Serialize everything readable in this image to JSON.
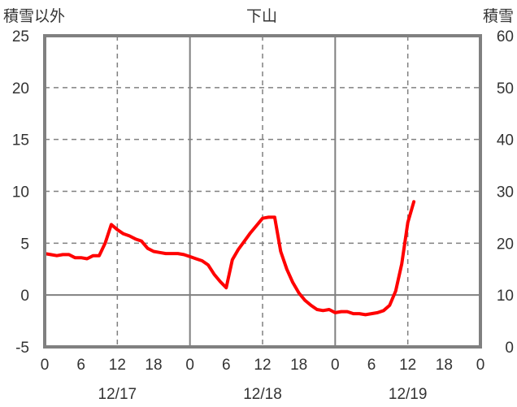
{
  "chart_data": {
    "type": "line",
    "title": "下山",
    "left_axis_label": "積雪以外",
    "right_axis_label": "積雪",
    "y_left": {
      "range": [
        -5,
        25
      ],
      "ticks": [
        -5,
        0,
        5,
        10,
        15,
        20,
        25
      ]
    },
    "y_right": {
      "range": [
        0,
        60
      ],
      "ticks": [
        0,
        10,
        20,
        30,
        40,
        50,
        60
      ]
    },
    "x": {
      "range": [
        0,
        72
      ],
      "tick_values": [
        0,
        6,
        12,
        18,
        24,
        30,
        36,
        42,
        48,
        54,
        60,
        66,
        72
      ],
      "tick_labels": [
        "0",
        "6",
        "12",
        "18",
        "0",
        "6",
        "12",
        "18",
        "0",
        "6",
        "12",
        "18",
        "0"
      ],
      "day_labels": [
        {
          "at": 12,
          "text": "12/17"
        },
        {
          "at": 36,
          "text": "12/18"
        },
        {
          "at": 60,
          "text": "12/19"
        }
      ],
      "day_boundaries": [
        24,
        48
      ],
      "dashed_grid_at": [
        12,
        36,
        60
      ]
    },
    "grid": true,
    "series": [
      {
        "color": "#ff0000",
        "axis": "left",
        "points": [
          [
            0,
            4.0
          ],
          [
            1,
            3.9
          ],
          [
            2,
            3.8
          ],
          [
            3,
            3.9
          ],
          [
            4,
            3.9
          ],
          [
            5,
            3.6
          ],
          [
            6,
            3.6
          ],
          [
            7,
            3.5
          ],
          [
            8,
            3.8
          ],
          [
            9,
            3.8
          ],
          [
            10,
            5.0
          ],
          [
            11,
            6.8
          ],
          [
            12,
            6.3
          ],
          [
            13,
            5.9
          ],
          [
            14,
            5.7
          ],
          [
            15,
            5.4
          ],
          [
            16,
            5.2
          ],
          [
            17,
            4.5
          ],
          [
            18,
            4.2
          ],
          [
            19,
            4.1
          ],
          [
            20,
            4.0
          ],
          [
            21,
            4.0
          ],
          [
            22,
            4.0
          ],
          [
            23,
            3.9
          ],
          [
            24,
            3.7
          ],
          [
            25,
            3.5
          ],
          [
            26,
            3.3
          ],
          [
            27,
            2.9
          ],
          [
            28,
            2.0
          ],
          [
            29,
            1.3
          ],
          [
            30,
            0.7
          ],
          [
            31,
            3.4
          ],
          [
            32,
            4.4
          ],
          [
            33,
            5.2
          ],
          [
            34,
            6.0
          ],
          [
            35,
            6.7
          ],
          [
            36,
            7.4
          ],
          [
            37,
            7.5
          ],
          [
            38,
            7.5
          ],
          [
            39,
            4.2
          ],
          [
            40,
            2.5
          ],
          [
            41,
            1.2
          ],
          [
            42,
            0.2
          ],
          [
            43,
            -0.5
          ],
          [
            44,
            -1.0
          ],
          [
            45,
            -1.4
          ],
          [
            46,
            -1.5
          ],
          [
            47,
            -1.4
          ],
          [
            48,
            -1.7
          ],
          [
            49,
            -1.6
          ],
          [
            50,
            -1.6
          ],
          [
            51,
            -1.8
          ],
          [
            52,
            -1.8
          ],
          [
            53,
            -1.9
          ],
          [
            54,
            -1.8
          ],
          [
            55,
            -1.7
          ],
          [
            56,
            -1.5
          ],
          [
            57,
            -1.0
          ],
          [
            58,
            0.4
          ],
          [
            59,
            3.0
          ],
          [
            60,
            7.0
          ],
          [
            61,
            9.0
          ]
        ]
      },
      {
        "color": "#7030a0",
        "axis": "right",
        "points": [
          [
            0,
            0
          ],
          [
            61,
            0
          ]
        ]
      }
    ]
  }
}
